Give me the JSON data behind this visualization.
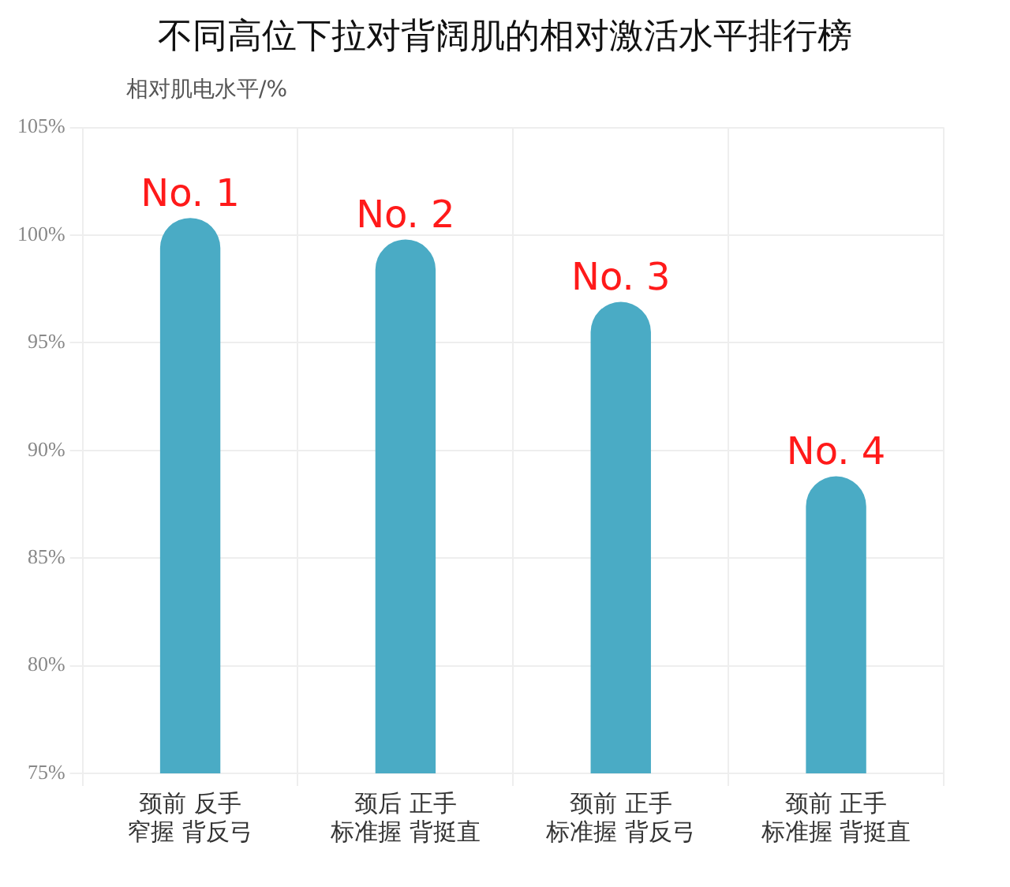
{
  "chart_data": {
    "type": "bar",
    "title": "不同高位下拉对背阔肌的相对激活水平排行榜",
    "ylabel": "相对肌电水平/%",
    "categories": [
      "颈前 反手窄握 背反弓",
      "颈后 正手标准握 背挺直",
      "颈前 正手标准握 背反弓",
      "颈前 正手标准握 背挺直"
    ],
    "values": [
      100.8,
      99.8,
      96.9,
      88.8
    ],
    "color": "#4aabc5",
    "ylim": [
      75,
      105
    ],
    "yticks": [
      {
        "value": 75,
        "label": "75%"
      },
      {
        "value": 80,
        "label": "80%"
      },
      {
        "value": 85,
        "label": "85%"
      },
      {
        "value": 90,
        "label": "90%"
      },
      {
        "value": 95,
        "label": "95%"
      },
      {
        "value": 100,
        "label": "100%"
      },
      {
        "value": 105,
        "label": "105%"
      }
    ],
    "grid": true,
    "annotations": [
      {
        "text": "No. 1",
        "x": "颈前 反手窄握 背反弓",
        "y": 100.8
      },
      {
        "text": "No. 2",
        "x": "颈后 正手标准握 背挺直",
        "y": 99.8
      },
      {
        "text": "No. 3",
        "x": "颈前 正手标准握 背反弓",
        "y": 96.9
      },
      {
        "text": "No. 4",
        "x": "颈前 正手标准握 背挺直",
        "y": 88.8
      }
    ]
  }
}
